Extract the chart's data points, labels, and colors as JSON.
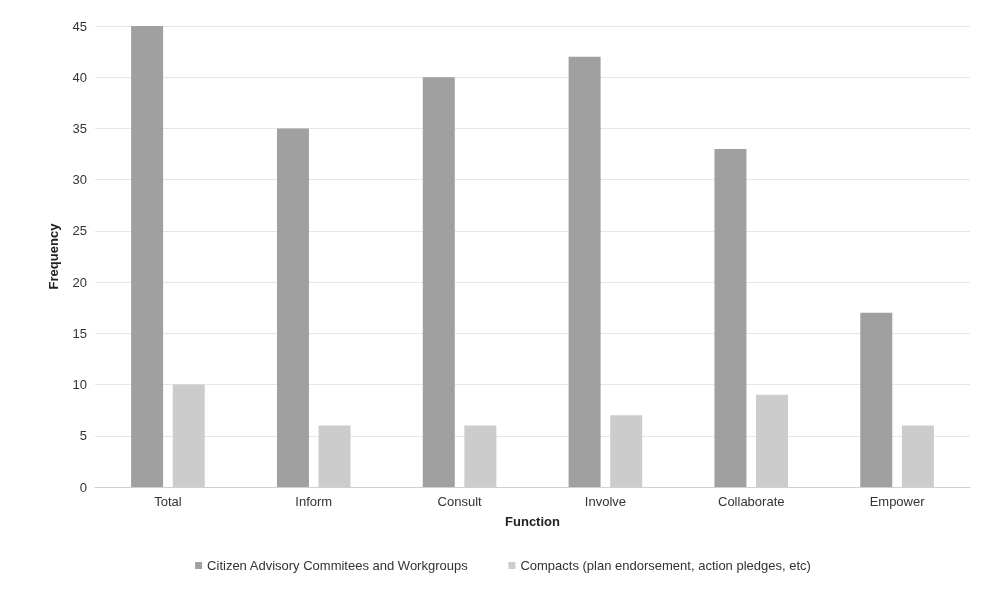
{
  "chart_data": {
    "type": "bar",
    "xlabel": "Function",
    "ylabel": "Frequency",
    "categories": [
      "Total",
      "Inform",
      "Consult",
      "Involve",
      "Collaborate",
      "Empower"
    ],
    "series": [
      {
        "name": "Citizen Advisory Commitees and Workgroups",
        "color": "#a0a0a0",
        "values": [
          45,
          35,
          40,
          42,
          33,
          17
        ]
      },
      {
        "name": "Compacts (plan endorsement, action pledges, etc)",
        "color": "#cccccc",
        "values": [
          10,
          6,
          6,
          7,
          9,
          6
        ]
      }
    ],
    "ylim": [
      0,
      45
    ],
    "yticks": [
      0,
      5,
      10,
      15,
      20,
      25,
      30,
      35,
      40,
      45
    ],
    "grid": "y",
    "legend": "bottom"
  }
}
